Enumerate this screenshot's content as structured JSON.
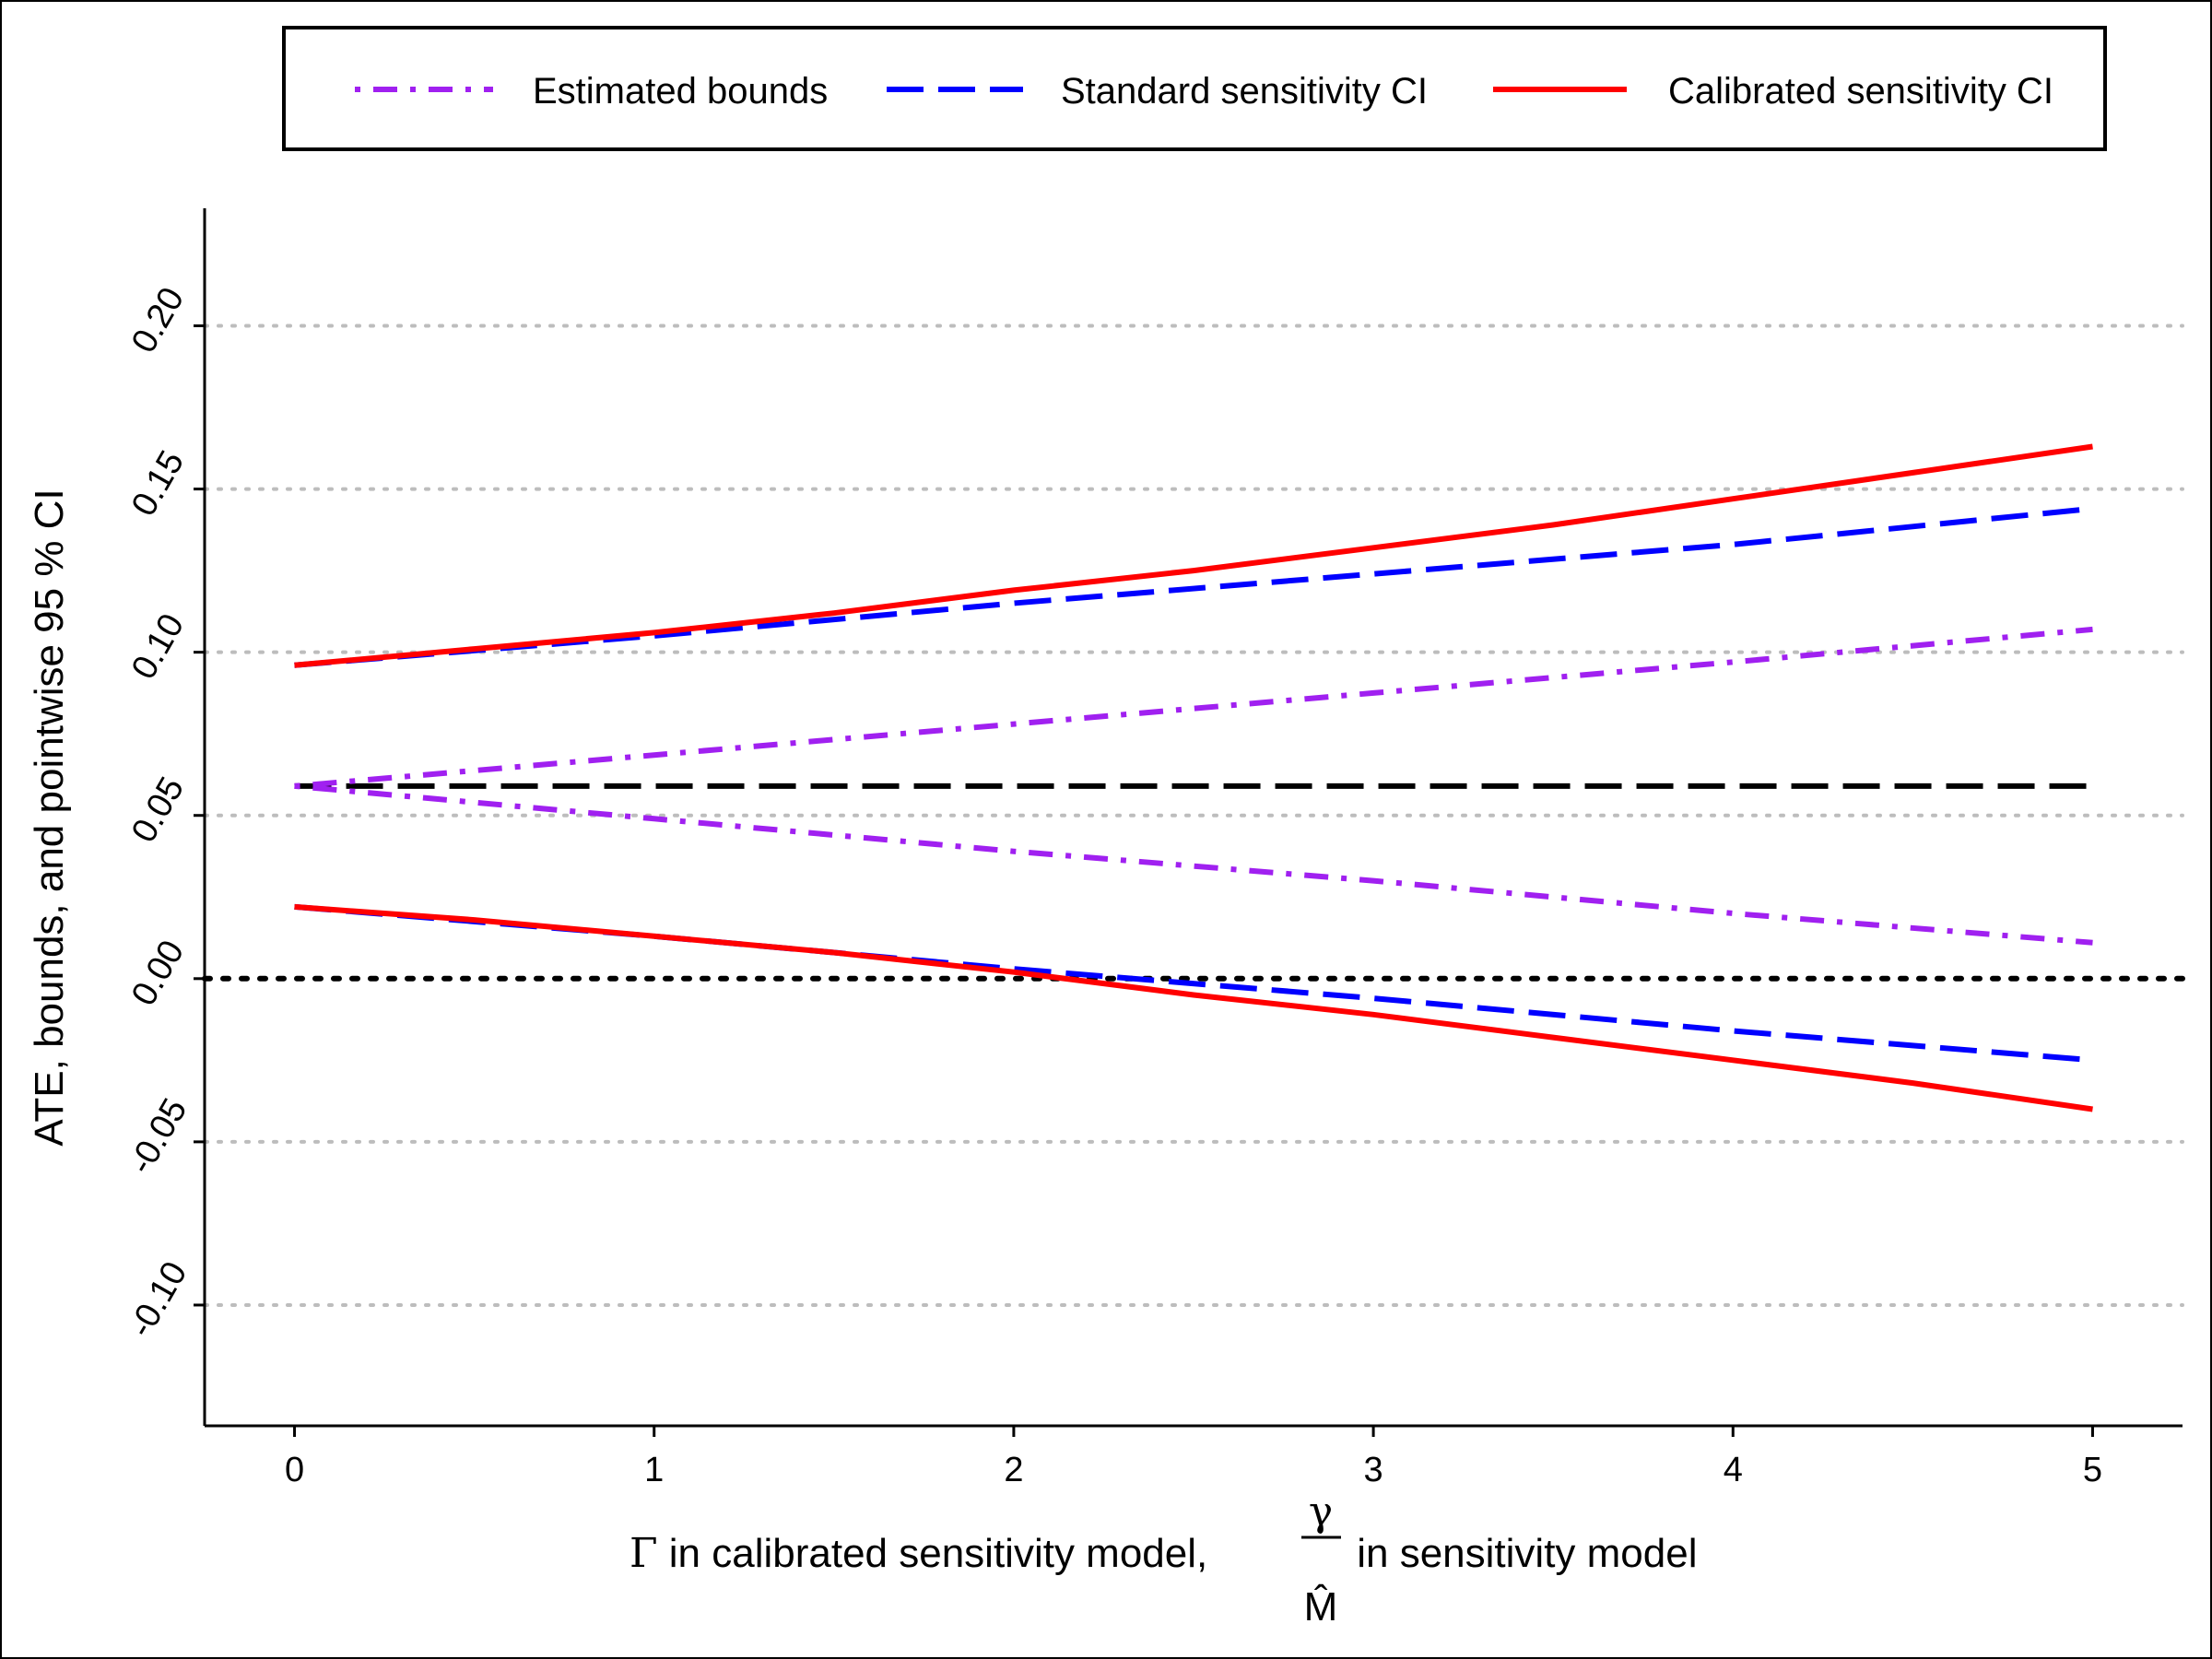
{
  "chart_data": {
    "type": "line",
    "xlabel_parts": {
      "pre": "Γ",
      "mid": " in calibrated sensitivity model, ",
      "frac_num": "γ",
      "frac_den": "M̂",
      "post": " in sensitivity model"
    },
    "ylabel": "ATE, bounds, and pointwise 95 %  CI",
    "xlim": [
      -0.25,
      5.25
    ],
    "ylim": [
      -0.137,
      0.236
    ],
    "x_ticks": [
      0,
      1,
      2,
      3,
      4,
      5
    ],
    "x_tick_labels": [
      "0",
      "1",
      "2",
      "3",
      "4",
      "5"
    ],
    "y_ticks": [
      -0.1,
      -0.05,
      0.0,
      0.05,
      0.1,
      0.15,
      0.2
    ],
    "y_tick_labels": [
      "-0.10",
      "-0.05",
      "0.00",
      "0.05",
      "0.10",
      "0.15",
      "0.20"
    ],
    "grid": "horizontal dotted",
    "legend_position": "top",
    "legend": [
      {
        "label": "Estimated bounds",
        "color": "#a020f0",
        "style": "dotdash"
      },
      {
        "label": "Standard sensitivity CI",
        "color": "#0000ff",
        "style": "longdash"
      },
      {
        "label": "Calibrated sensitivity CI",
        "color": "#ff0000",
        "style": "solid"
      }
    ],
    "reference_lines": [
      {
        "y": 0.059,
        "color": "#000000",
        "style": "longdash"
      },
      {
        "y": 0.0,
        "color": "#000000",
        "style": "dotted"
      }
    ],
    "series": [
      {
        "group": "Estimated bounds",
        "bound": "upper",
        "color": "#a020f0",
        "style": "dotdash",
        "x": [
          0,
          1,
          2,
          3,
          4,
          5
        ],
        "y": [
          0.059,
          0.0685,
          0.078,
          0.0875,
          0.097,
          0.107
        ]
      },
      {
        "group": "Estimated bounds",
        "bound": "lower",
        "color": "#a020f0",
        "style": "dotdash",
        "x": [
          0,
          1,
          2,
          3,
          4,
          5
        ],
        "y": [
          0.059,
          0.049,
          0.039,
          0.03,
          0.02,
          0.011
        ]
      },
      {
        "group": "Standard sensitivity CI",
        "bound": "upper",
        "color": "#0000ff",
        "style": "longdash",
        "x": [
          0,
          1,
          2,
          3,
          4,
          5
        ],
        "y": [
          0.096,
          0.105,
          0.115,
          0.124,
          0.133,
          0.144
        ]
      },
      {
        "group": "Standard sensitivity CI",
        "bound": "lower",
        "color": "#0000ff",
        "style": "longdash",
        "x": [
          0,
          1,
          2,
          3,
          4,
          5
        ],
        "y": [
          0.022,
          0.013,
          0.003,
          -0.006,
          -0.016,
          -0.025
        ]
      },
      {
        "group": "Calibrated sensitivity CI",
        "bound": "upper",
        "color": "#ff0000",
        "style": "solid",
        "x": [
          0,
          0.5,
          1,
          1.5,
          2,
          2.5,
          3,
          3.5,
          4,
          4.5,
          5
        ],
        "y": [
          0.096,
          0.101,
          0.106,
          0.112,
          0.119,
          0.125,
          0.132,
          0.139,
          0.147,
          0.155,
          0.163
        ]
      },
      {
        "group": "Calibrated sensitivity CI",
        "bound": "lower",
        "color": "#ff0000",
        "style": "solid",
        "x": [
          0,
          0.5,
          1,
          1.5,
          2,
          2.5,
          3,
          3.5,
          4,
          4.5,
          5
        ],
        "y": [
          0.022,
          0.018,
          0.013,
          0.008,
          0.002,
          -0.005,
          -0.011,
          -0.018,
          -0.025,
          -0.032,
          -0.04
        ]
      }
    ]
  }
}
